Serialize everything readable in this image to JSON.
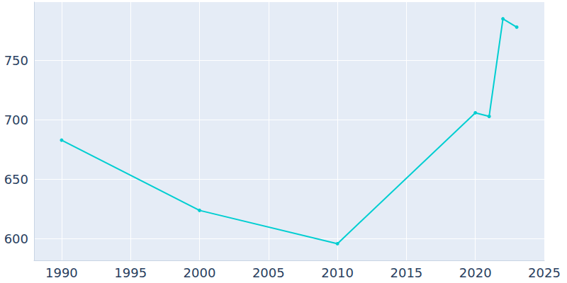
{
  "chart_data": {
    "type": "line",
    "x": [
      1990,
      2000,
      2010,
      2020,
      2021,
      2022,
      2023
    ],
    "values": [
      683,
      624,
      596,
      706,
      703,
      785,
      778
    ],
    "color": "#00ced1",
    "marker": "circle",
    "xlim": [
      1988,
      2025
    ],
    "xticks": [
      1990,
      1995,
      2000,
      2005,
      2010,
      2015,
      2020,
      2025
    ],
    "ylim": [
      582,
      799
    ],
    "yticks": [
      600,
      650,
      700,
      750
    ],
    "grid": true
  }
}
